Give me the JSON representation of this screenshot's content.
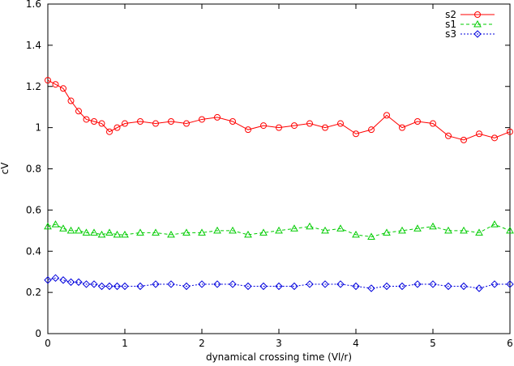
{
  "chart_data": {
    "type": "line",
    "title": "",
    "xlabel": "dynamical crossing time (Vl/r)",
    "ylabel": "cV",
    "xlim": [
      0,
      6
    ],
    "ylim": [
      0,
      1.6
    ],
    "xticks": [
      0,
      1,
      2,
      3,
      4,
      5,
      6
    ],
    "xtick_labels": [
      "0",
      "1",
      "2",
      "3",
      "4",
      "5",
      "6"
    ],
    "yticks": [
      0,
      0.2,
      0.4,
      0.6,
      0.8,
      1,
      1.2,
      1.4,
      1.6
    ],
    "ytick_labels": [
      "0",
      "0.2",
      "0.4",
      "0.6",
      "0.8",
      "1",
      "1.2",
      "1.4",
      "1.6"
    ],
    "grid": false,
    "legend_position": "top-right",
    "series": [
      {
        "name": "s2",
        "color": "#ff0000",
        "marker": "circle",
        "line": "solid",
        "x": [
          0.0,
          0.1,
          0.2,
          0.3,
          0.4,
          0.5,
          0.6,
          0.7,
          0.8,
          0.9,
          1.0,
          1.2,
          1.4,
          1.6,
          1.8,
          2.0,
          2.2,
          2.4,
          2.6,
          2.8,
          3.0,
          3.2,
          3.4,
          3.6,
          3.8,
          4.0,
          4.2,
          4.4,
          4.6,
          4.8,
          5.0,
          5.2,
          5.4,
          5.6,
          5.8,
          6.0
        ],
        "y": [
          1.23,
          1.21,
          1.19,
          1.13,
          1.08,
          1.04,
          1.03,
          1.02,
          0.98,
          1.0,
          1.02,
          1.03,
          1.02,
          1.03,
          1.02,
          1.04,
          1.05,
          1.03,
          0.99,
          1.01,
          1.0,
          1.01,
          1.02,
          1.0,
          1.02,
          0.97,
          0.99,
          1.06,
          1.0,
          1.03,
          1.02,
          0.96,
          0.94,
          0.97,
          0.95,
          0.98
        ]
      },
      {
        "name": "s1",
        "color": "#00cc00",
        "marker": "triangle",
        "line": "dashed",
        "x": [
          0.0,
          0.1,
          0.2,
          0.3,
          0.4,
          0.5,
          0.6,
          0.7,
          0.8,
          0.9,
          1.0,
          1.2,
          1.4,
          1.6,
          1.8,
          2.0,
          2.2,
          2.4,
          2.6,
          2.8,
          3.0,
          3.2,
          3.4,
          3.6,
          3.8,
          4.0,
          4.2,
          4.4,
          4.6,
          4.8,
          5.0,
          5.2,
          5.4,
          5.6,
          5.8,
          6.0
        ],
        "y": [
          0.52,
          0.53,
          0.51,
          0.5,
          0.5,
          0.49,
          0.49,
          0.48,
          0.49,
          0.48,
          0.48,
          0.49,
          0.49,
          0.48,
          0.49,
          0.49,
          0.5,
          0.5,
          0.48,
          0.49,
          0.5,
          0.51,
          0.52,
          0.5,
          0.51,
          0.48,
          0.47,
          0.49,
          0.5,
          0.51,
          0.52,
          0.5,
          0.5,
          0.49,
          0.53,
          0.5
        ]
      },
      {
        "name": "s3",
        "color": "#0000dd",
        "marker": "diamond",
        "line": "dotted",
        "x": [
          0.0,
          0.1,
          0.2,
          0.3,
          0.4,
          0.5,
          0.6,
          0.7,
          0.8,
          0.9,
          1.0,
          1.2,
          1.4,
          1.6,
          1.8,
          2.0,
          2.2,
          2.4,
          2.6,
          2.8,
          3.0,
          3.2,
          3.4,
          3.6,
          3.8,
          4.0,
          4.2,
          4.4,
          4.6,
          4.8,
          5.0,
          5.2,
          5.4,
          5.6,
          5.8,
          6.0
        ],
        "y": [
          0.26,
          0.27,
          0.26,
          0.25,
          0.25,
          0.24,
          0.24,
          0.23,
          0.23,
          0.23,
          0.23,
          0.23,
          0.24,
          0.24,
          0.23,
          0.24,
          0.24,
          0.24,
          0.23,
          0.23,
          0.23,
          0.23,
          0.24,
          0.24,
          0.24,
          0.23,
          0.22,
          0.23,
          0.23,
          0.24,
          0.24,
          0.23,
          0.23,
          0.22,
          0.24,
          0.24
        ]
      }
    ]
  }
}
